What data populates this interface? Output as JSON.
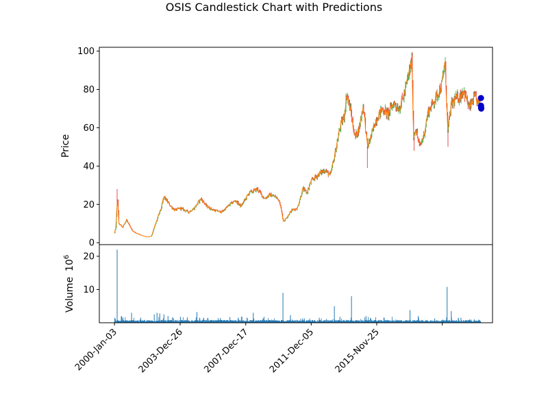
{
  "chart_data": {
    "type": "candlestick",
    "title": "OSIS Candlestick Chart with Predictions",
    "price_panel": {
      "ylabel": "Price",
      "ylim": [
        -1,
        102
      ],
      "yticks": [
        0,
        20,
        40,
        60,
        80,
        100
      ],
      "up_color": "#2ca02c",
      "down_color": "#d62728",
      "close_line_color": "#ff7f0e",
      "anchors": [
        [
          "2000-01-03",
          5
        ],
        [
          "2000-02-01",
          8
        ],
        [
          "2000-03-10",
          24
        ],
        [
          "2000-04-10",
          10
        ],
        [
          "2000-07-01",
          8
        ],
        [
          "2000-10-01",
          12
        ],
        [
          "2001-02-01",
          6
        ],
        [
          "2001-08-01",
          4
        ],
        [
          "2002-01-01",
          3
        ],
        [
          "2002-04-01",
          3.5
        ],
        [
          "2002-07-01",
          10
        ],
        [
          "2002-11-01",
          18
        ],
        [
          "2003-01-01",
          24
        ],
        [
          "2003-03-01",
          22
        ],
        [
          "2003-06-01",
          19
        ],
        [
          "2003-09-01",
          17
        ],
        [
          "2004-01-01",
          18
        ],
        [
          "2004-07-01",
          16
        ],
        [
          "2004-11-01",
          18
        ],
        [
          "2005-04-01",
          23
        ],
        [
          "2005-08-01",
          19
        ],
        [
          "2006-01-01",
          17
        ],
        [
          "2006-07-01",
          16
        ],
        [
          "2007-01-01",
          20
        ],
        [
          "2007-05-01",
          22
        ],
        [
          "2007-09-01",
          19
        ],
        [
          "2008-03-01",
          26
        ],
        [
          "2008-09-01",
          28
        ],
        [
          "2009-02-01",
          23
        ],
        [
          "2009-06-01",
          25
        ],
        [
          "2009-10-01",
          24
        ],
        [
          "2010-01-01",
          22
        ],
        [
          "2010-04-01",
          11
        ],
        [
          "2010-10-01",
          17
        ],
        [
          "2011-02-01",
          18
        ],
        [
          "2011-06-01",
          28
        ],
        [
          "2011-09-01",
          26
        ],
        [
          "2011-12-01",
          32
        ],
        [
          "2012-06-01",
          36
        ],
        [
          "2012-10-01",
          38
        ],
        [
          "2013-02-01",
          35
        ],
        [
          "2013-05-01",
          45
        ],
        [
          "2013-09-01",
          60
        ],
        [
          "2013-12-01",
          66
        ],
        [
          "2014-02-01",
          78
        ],
        [
          "2014-05-01",
          68
        ],
        [
          "2014-08-01",
          55
        ],
        [
          "2014-11-01",
          60
        ],
        [
          "2015-02-01",
          72
        ],
        [
          "2015-05-01",
          50
        ],
        [
          "2015-08-01",
          56
        ],
        [
          "2015-11-01",
          64
        ],
        [
          "2016-04-01",
          70
        ],
        [
          "2016-08-01",
          67
        ],
        [
          "2016-12-01",
          73
        ],
        [
          "2017-04-01",
          70
        ],
        [
          "2017-08-01",
          78
        ],
        [
          "2017-12-01",
          91
        ],
        [
          "2018-01-15",
          95
        ],
        [
          "2018-02-15",
          55
        ],
        [
          "2018-04-01",
          60
        ],
        [
          "2018-07-01",
          50
        ],
        [
          "2018-10-01",
          56
        ],
        [
          "2019-01-01",
          68
        ],
        [
          "2019-04-01",
          72
        ],
        [
          "2019-07-01",
          76
        ],
        [
          "2019-11-01",
          82
        ],
        [
          "2020-01-15",
          95
        ],
        [
          "2020-03-15",
          58
        ],
        [
          "2020-06-01",
          72
        ],
        [
          "2020-09-01",
          75
        ],
        [
          "2020-12-01",
          76
        ],
        [
          "2021-03-01",
          80
        ],
        [
          "2021-07-01",
          70
        ],
        [
          "2021-11-01",
          76
        ],
        [
          "2022-02-01",
          72
        ]
      ],
      "predictions": [
        [
          "2022-03-20",
          75.5
        ],
        [
          "2022-03-22",
          71.5
        ],
        [
          "2022-03-24",
          70.5
        ],
        [
          "2022-03-26",
          70
        ]
      ],
      "prediction_color": "#0000cc"
    },
    "volume_panel": {
      "ylabel": "Volume",
      "ylabel_unit": "10",
      "ylabel_exp": "6",
      "ylim": [
        0,
        23.5
      ],
      "yticks": [
        10,
        20
      ],
      "bar_color": "#1f77b4",
      "spikes": [
        [
          "2000-03-01",
          22
        ],
        [
          "2000-01-10",
          1.5
        ],
        [
          "2000-06-01",
          2
        ],
        [
          "2001-01-15",
          3
        ],
        [
          "2001-08-01",
          1.2
        ],
        [
          "2002-06-01",
          2.5
        ],
        [
          "2002-08-01",
          3
        ],
        [
          "2002-10-01",
          2.8
        ],
        [
          "2003-01-01",
          2.5
        ],
        [
          "2003-04-01",
          2
        ],
        [
          "2004-01-01",
          1.8
        ],
        [
          "2004-06-01",
          1.6
        ],
        [
          "2005-01-01",
          3.2
        ],
        [
          "2005-06-01",
          1.5
        ],
        [
          "2006-06-01",
          1.4
        ],
        [
          "2007-01-01",
          1.7
        ],
        [
          "2008-06-01",
          3
        ],
        [
          "2009-01-01",
          1.2
        ],
        [
          "2010-03-20",
          9
        ],
        [
          "2010-09-01",
          2.3
        ],
        [
          "2011-06-01",
          1.3
        ],
        [
          "2012-06-01",
          1.5
        ],
        [
          "2013-05-01",
          5
        ],
        [
          "2013-09-01",
          1.8
        ],
        [
          "2014-05-15",
          8
        ],
        [
          "2015-04-01",
          2
        ],
        [
          "2016-05-01",
          1.5
        ],
        [
          "2017-12-01",
          3.8
        ],
        [
          "2018-06-01",
          2
        ],
        [
          "2019-06-01",
          1.3
        ],
        [
          "2020-03-01",
          10.8
        ],
        [
          "2020-06-01",
          3.5
        ],
        [
          "2021-01-01",
          1.5
        ]
      ]
    },
    "x_axis": {
      "start": "1999-02-01",
      "end": "2022-12-01",
      "ticks": [
        [
          "2000-01-03",
          "2000-Jan-03"
        ],
        [
          "2003-12-26",
          "2003-Dec-26"
        ],
        [
          "2007-12-17",
          "2007-Dec-17"
        ],
        [
          "2011-12-05",
          "2011-Dec-05"
        ],
        [
          "2015-11-25",
          "2015-Nov-25"
        ],
        [
          "2019-11-15",
          ""
        ]
      ],
      "data_start": "2000-01-03",
      "data_end": "2022-03-18"
    }
  }
}
